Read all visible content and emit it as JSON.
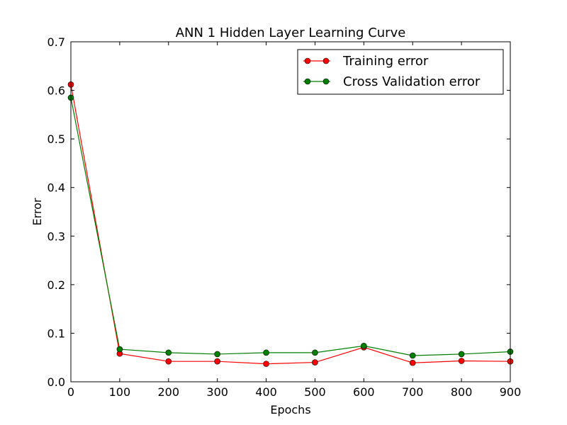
{
  "chart_data": {
    "type": "line",
    "title": "ANN 1 Hidden Layer Learning Curve",
    "xlabel": "Epochs",
    "ylabel": "Error",
    "xlim": [
      0,
      900
    ],
    "ylim": [
      0,
      0.7
    ],
    "xticks": [
      0,
      100,
      200,
      300,
      400,
      500,
      600,
      700,
      800,
      900
    ],
    "yticks": [
      0.0,
      0.1,
      0.2,
      0.3,
      0.4,
      0.5,
      0.6,
      0.7
    ],
    "xtick_labels": [
      "0",
      "100",
      "200",
      "300",
      "400",
      "500",
      "600",
      "700",
      "800",
      "900"
    ],
    "ytick_labels": [
      "0.0",
      "0.1",
      "0.2",
      "0.3",
      "0.4",
      "0.5",
      "0.6",
      "0.7"
    ],
    "grid": false,
    "legend": "top-right",
    "x": [
      0,
      100,
      200,
      300,
      400,
      500,
      600,
      700,
      800,
      900
    ],
    "series": [
      {
        "name": "Training error",
        "color": "#ff0000",
        "marker": "circle",
        "values": [
          0.612,
          0.058,
          0.042,
          0.042,
          0.037,
          0.04,
          0.071,
          0.039,
          0.043,
          0.042
        ]
      },
      {
        "name": "Cross Validation error",
        "color": "#008000",
        "marker": "circle",
        "values": [
          0.585,
          0.067,
          0.06,
          0.057,
          0.06,
          0.06,
          0.074,
          0.054,
          0.057,
          0.062
        ]
      }
    ]
  }
}
